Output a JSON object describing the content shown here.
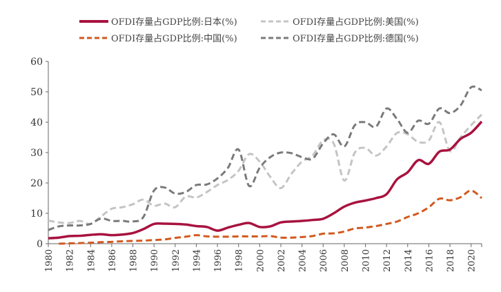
{
  "chart_data": {
    "type": "line",
    "title": "",
    "xlabel": "",
    "ylabel": "",
    "ylim": [
      0,
      60
    ],
    "xlim": [
      1980,
      2021
    ],
    "yticks": [
      0,
      10,
      20,
      30,
      40,
      50,
      60
    ],
    "xticks": [
      "1980",
      "1982",
      "1984",
      "1986",
      "1988",
      "1990",
      "1992",
      "1994",
      "1996",
      "1998",
      "2000",
      "2002",
      "2004",
      "2006",
      "2008",
      "2010",
      "2012",
      "2014",
      "2016",
      "2018",
      "2020"
    ],
    "grid": false,
    "legend_position": "top",
    "series": [
      {
        "name": "OFDI存量占GDP比例:日本(%)",
        "color": "#a8123f",
        "style": "solid",
        "x": [
          1980,
          1981,
          1982,
          1983,
          1984,
          1985,
          1986,
          1987,
          1988,
          1989,
          1990,
          1991,
          1992,
          1993,
          1994,
          1995,
          1996,
          1997,
          1998,
          1999,
          2000,
          2001,
          2002,
          2003,
          2004,
          2005,
          2006,
          2007,
          2008,
          2009,
          2010,
          2011,
          2012,
          2013,
          2014,
          2015,
          2016,
          2017,
          2018,
          2019,
          2020,
          2021
        ],
        "values": [
          1.8,
          2.0,
          2.5,
          2.6,
          2.9,
          3.1,
          2.8,
          3.0,
          3.5,
          4.8,
          6.5,
          6.6,
          6.5,
          6.3,
          5.8,
          5.5,
          4.3,
          5.3,
          6.2,
          6.8,
          5.5,
          5.7,
          7.0,
          7.3,
          7.5,
          7.8,
          8.2,
          10.0,
          12.2,
          13.5,
          14.2,
          15.0,
          16.3,
          21.2,
          23.5,
          27.5,
          26.3,
          30.3,
          31.0,
          34.5,
          36.5,
          40.2
        ]
      },
      {
        "name": "OFDI存量占GDP比例:美国(%)",
        "color": "#c4c4c4",
        "style": "dashed",
        "x": [
          1980,
          1981,
          1982,
          1983,
          1984,
          1985,
          1986,
          1987,
          1988,
          1989,
          1990,
          1991,
          1992,
          1993,
          1994,
          1995,
          1996,
          1997,
          1998,
          1999,
          2000,
          2001,
          2002,
          2003,
          2004,
          2005,
          2006,
          2007,
          2008,
          2009,
          2010,
          2011,
          2012,
          2013,
          2014,
          2015,
          2016,
          2017,
          2018,
          2019,
          2020,
          2021
        ],
        "values": [
          7.6,
          7.0,
          6.8,
          7.5,
          6.5,
          9.0,
          11.5,
          12.0,
          13.0,
          14.5,
          12.5,
          13.2,
          12.0,
          15.5,
          15.2,
          17.0,
          19.3,
          21.0,
          24.0,
          29.5,
          27.0,
          22.0,
          18.3,
          23.0,
          27.0,
          29.0,
          34.0,
          33.0,
          20.8,
          30.0,
          31.5,
          29.0,
          32.0,
          36.5,
          36.0,
          33.5,
          34.0,
          40.0,
          30.5,
          35.0,
          39.0,
          42.5
        ]
      },
      {
        "name": "OFDI存量占GDP比例:中国(%)",
        "color": "#d2581e",
        "style": "dashed",
        "x": [
          1981,
          1982,
          1983,
          1984,
          1985,
          1986,
          1987,
          1988,
          1989,
          1990,
          1991,
          1992,
          1993,
          1994,
          1995,
          1996,
          1997,
          1998,
          1999,
          2000,
          2001,
          2002,
          2003,
          2004,
          2005,
          2006,
          2007,
          2008,
          2009,
          2010,
          2011,
          2012,
          2013,
          2014,
          2015,
          2016,
          2017,
          2018,
          2019,
          2020,
          2021
        ],
        "values": [
          0.0,
          0.1,
          0.2,
          0.3,
          0.5,
          0.6,
          0.8,
          0.9,
          1.0,
          1.2,
          1.4,
          1.9,
          2.3,
          2.8,
          2.4,
          2.3,
          2.3,
          2.4,
          2.4,
          2.4,
          2.5,
          2.0,
          2.0,
          2.2,
          2.5,
          3.3,
          3.4,
          4.0,
          5.0,
          5.3,
          5.8,
          6.5,
          7.3,
          8.8,
          10.0,
          12.0,
          14.8,
          14.3,
          15.3,
          17.5,
          15.0
        ]
      },
      {
        "name": "OFDI存量占GDP比例:德国(%)",
        "color": "#7a7a7a",
        "style": "dashed",
        "x": [
          1980,
          1981,
          1982,
          1983,
          1984,
          1985,
          1986,
          1987,
          1988,
          1989,
          1990,
          1991,
          1992,
          1993,
          1994,
          1995,
          1996,
          1997,
          1998,
          1999,
          2000,
          2001,
          2002,
          2003,
          2004,
          2005,
          2006,
          2007,
          2008,
          2009,
          2010,
          2011,
          2012,
          2013,
          2014,
          2015,
          2016,
          2017,
          2018,
          2019,
          2020,
          2021
        ],
        "values": [
          4.5,
          5.7,
          6.0,
          6.0,
          6.5,
          8.3,
          7.5,
          7.5,
          7.3,
          8.8,
          17.5,
          18.5,
          16.5,
          17.0,
          19.3,
          19.5,
          21.5,
          25.0,
          31.0,
          19.0,
          25.0,
          28.5,
          30.0,
          29.8,
          28.5,
          28.0,
          33.0,
          36.0,
          32.0,
          39.0,
          40.0,
          38.5,
          44.5,
          41.0,
          36.5,
          40.5,
          39.5,
          44.5,
          43.0,
          45.5,
          51.5,
          50.5
        ]
      }
    ]
  }
}
